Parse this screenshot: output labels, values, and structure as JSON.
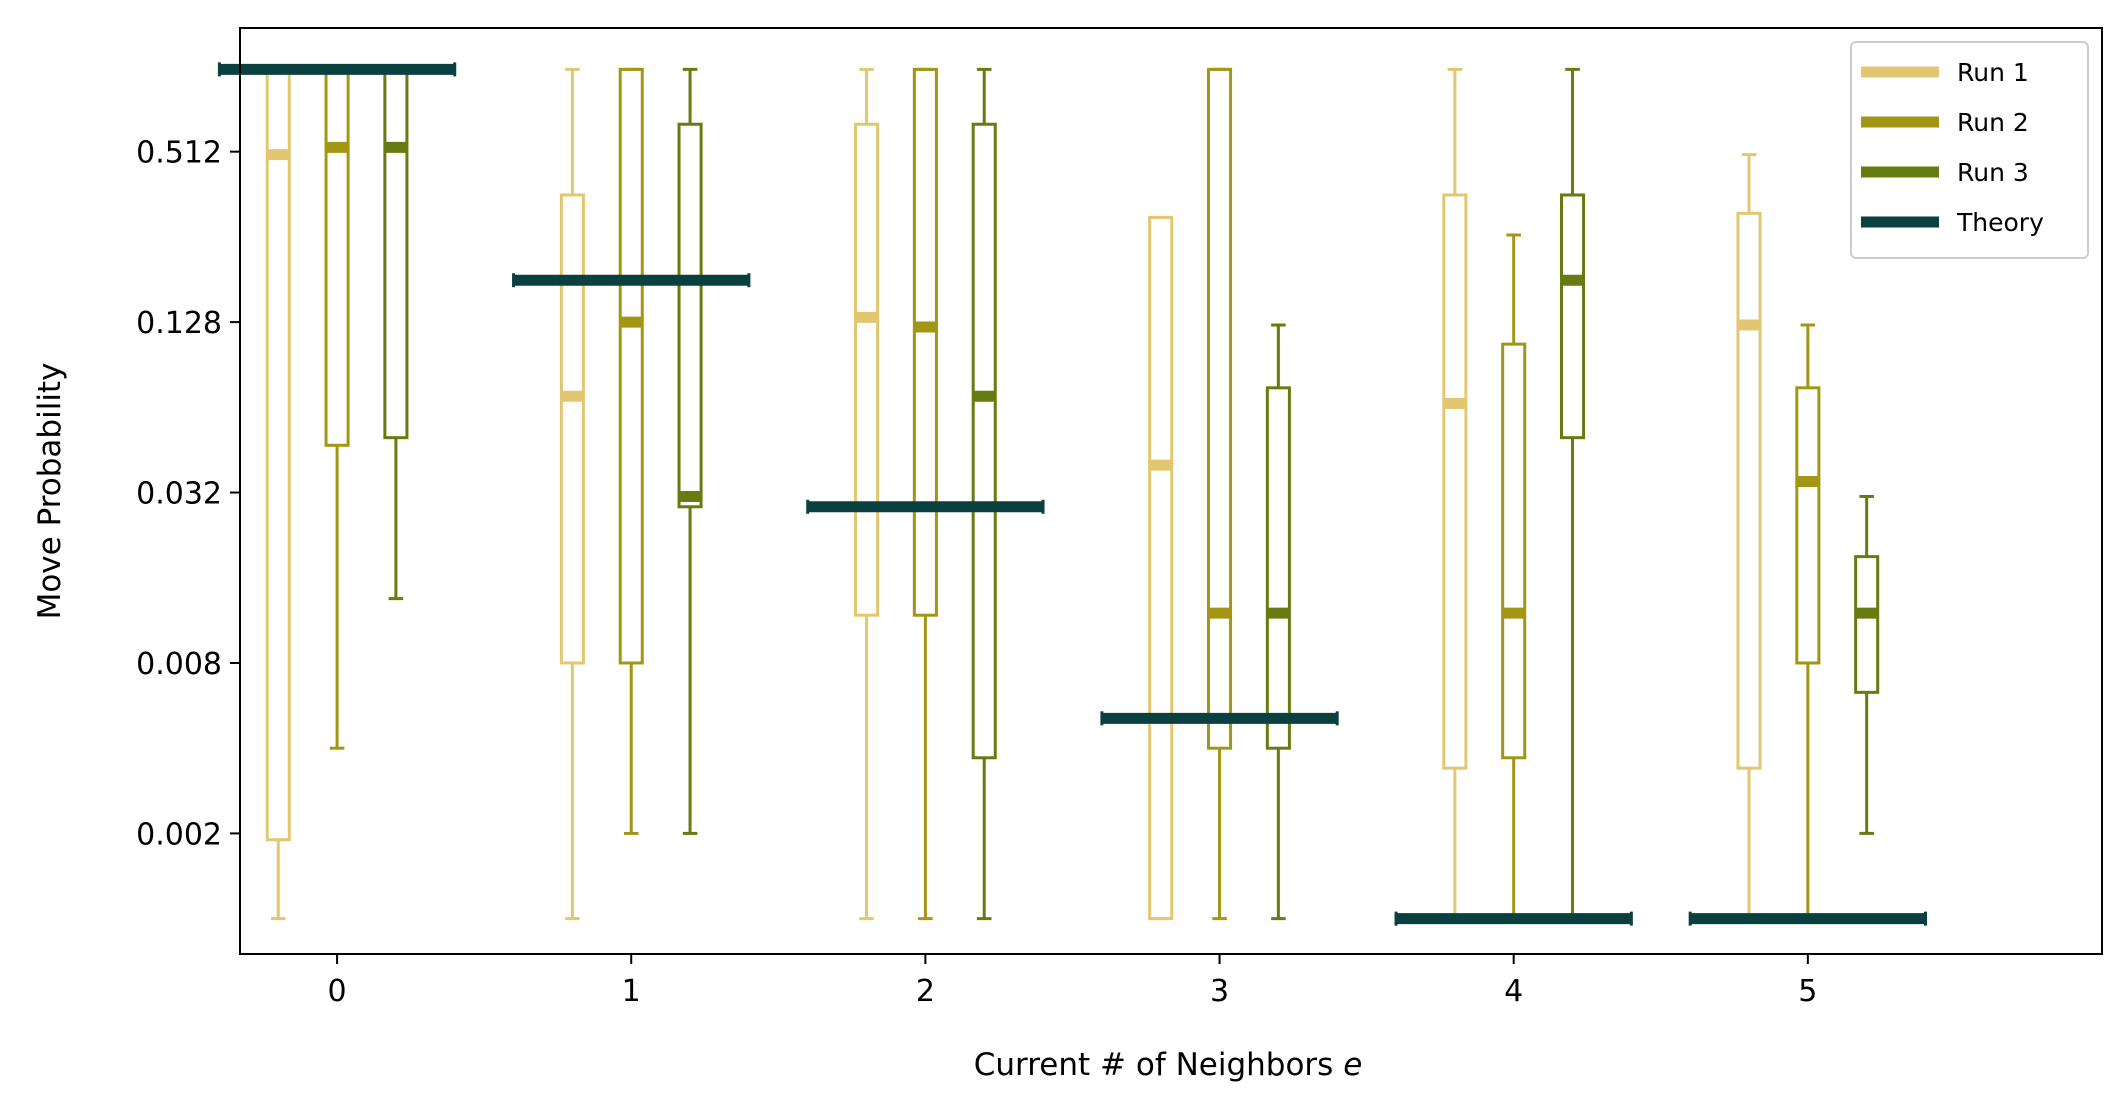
{
  "chart_data": {
    "type": "box",
    "xlabel": "Current # of Neighbors",
    "xlabel_var": "e",
    "ylabel": "Move Probability",
    "y_scale": "log2",
    "categories": [
      "0",
      "1",
      "2",
      "3",
      "4",
      "5"
    ],
    "y_ticks": [
      0.002,
      0.008,
      0.032,
      0.128,
      0.512
    ],
    "y_tick_labels": [
      "0.002",
      "0.008",
      "0.032",
      "0.128",
      "0.512"
    ],
    "xlim": [
      -0.33,
      6.0
    ],
    "ylim": [
      0.00075,
      1.4
    ],
    "legend": {
      "position": "top-right"
    },
    "series": [
      {
        "name": "Run 1",
        "color": "#e3c770",
        "boxes": [
          {
            "x": 0,
            "whislo": 0.001,
            "q1": 0.0019,
            "med": 0.5,
            "q3": 1.0,
            "whishi": 1.0
          },
          {
            "x": 1,
            "whislo": 0.001,
            "q1": 0.008,
            "med": 0.07,
            "q3": 0.36,
            "whishi": 1.0
          },
          {
            "x": 2,
            "whislo": 0.001,
            "q1": 0.0118,
            "med": 0.133,
            "q3": 0.64,
            "whishi": 1.0
          },
          {
            "x": 3,
            "whislo": 0.001,
            "q1": 0.001,
            "med": 0.04,
            "q3": 0.3,
            "whishi": 0.3
          },
          {
            "x": 4,
            "whislo": 0.001,
            "q1": 0.0034,
            "med": 0.066,
            "q3": 0.36,
            "whishi": 1.0
          },
          {
            "x": 5,
            "whislo": 0.001,
            "q1": 0.0034,
            "med": 0.125,
            "q3": 0.31,
            "whishi": 0.5
          }
        ]
      },
      {
        "name": "Run 2",
        "color": "#a39615",
        "boxes": [
          {
            "x": 0,
            "whislo": 0.004,
            "q1": 0.047,
            "med": 0.53,
            "q3": 1.0,
            "whishi": 1.0
          },
          {
            "x": 1,
            "whislo": 0.002,
            "q1": 0.008,
            "med": 0.128,
            "q3": 1.0,
            "whishi": 1.0
          },
          {
            "x": 2,
            "whislo": 0.001,
            "q1": 0.0118,
            "med": 0.123,
            "q3": 1.0,
            "whishi": 1.0
          },
          {
            "x": 3,
            "whislo": 0.001,
            "q1": 0.004,
            "med": 0.012,
            "q3": 1.0,
            "whishi": 1.0
          },
          {
            "x": 4,
            "whislo": 0.001,
            "q1": 0.0037,
            "med": 0.012,
            "q3": 0.107,
            "whishi": 0.26
          },
          {
            "x": 5,
            "whislo": 0.001,
            "q1": 0.008,
            "med": 0.035,
            "q3": 0.075,
            "whishi": 0.125
          }
        ]
      },
      {
        "name": "Run 3",
        "color": "#667b10",
        "boxes": [
          {
            "x": 0,
            "whislo": 0.0135,
            "q1": 0.05,
            "med": 0.53,
            "q3": 1.0,
            "whishi": 1.0
          },
          {
            "x": 1,
            "whislo": 0.002,
            "q1": 0.0285,
            "med": 0.031,
            "q3": 0.64,
            "whishi": 1.0
          },
          {
            "x": 2,
            "whislo": 0.001,
            "q1": 0.0037,
            "med": 0.07,
            "q3": 0.64,
            "whishi": 1.0
          },
          {
            "x": 3,
            "whislo": 0.001,
            "q1": 0.004,
            "med": 0.012,
            "q3": 0.075,
            "whishi": 0.125
          },
          {
            "x": 4,
            "whislo": 0.001,
            "q1": 0.05,
            "med": 0.18,
            "q3": 0.36,
            "whishi": 1.0
          },
          {
            "x": 5,
            "whislo": 0.002,
            "q1": 0.0063,
            "med": 0.012,
            "q3": 0.019,
            "whishi": 0.031
          }
        ]
      }
    ],
    "theory": {
      "name": "Theory",
      "color": "#0b4040",
      "values": [
        1.0,
        0.18,
        0.0285,
        0.0051,
        0.001,
        0.001
      ]
    }
  }
}
